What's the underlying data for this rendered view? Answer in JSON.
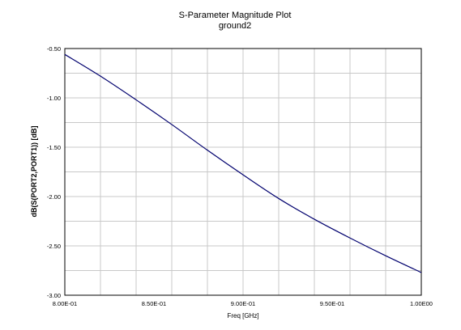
{
  "chart_data": {
    "type": "line",
    "title": "S-Parameter Magnitude Plot",
    "subtitle": "ground2",
    "xlabel": "Freq [GHz]",
    "ylabel": "dB(S(PORT2,PORT1)) [dB]",
    "xlim": [
      0.8,
      1.0
    ],
    "ylim": [
      -3.0,
      -0.5
    ],
    "grid": true,
    "x_ticks": [
      0.8,
      0.85,
      0.9,
      0.95,
      1.0
    ],
    "x_tick_labels": [
      "8.00E-01",
      "8.50E-01",
      "9.00E-01",
      "9.50E-01",
      "1.00E00"
    ],
    "y_ticks": [
      -3.0,
      -2.5,
      -2.0,
      -1.5,
      -1.0,
      -0.5
    ],
    "y_tick_labels": [
      "-3.00",
      "-2.50",
      "-2.00",
      "-1.50",
      "-1.00",
      "-0.50"
    ],
    "series": [
      {
        "color": "#00006e",
        "x": [
          0.8,
          0.82,
          0.84,
          0.86,
          0.88,
          0.9,
          0.92,
          0.94,
          0.96,
          0.98,
          1.0
        ],
        "y": [
          -0.56,
          -0.78,
          -1.02,
          -1.27,
          -1.53,
          -1.78,
          -2.02,
          -2.23,
          -2.42,
          -2.6,
          -2.77
        ]
      }
    ]
  }
}
